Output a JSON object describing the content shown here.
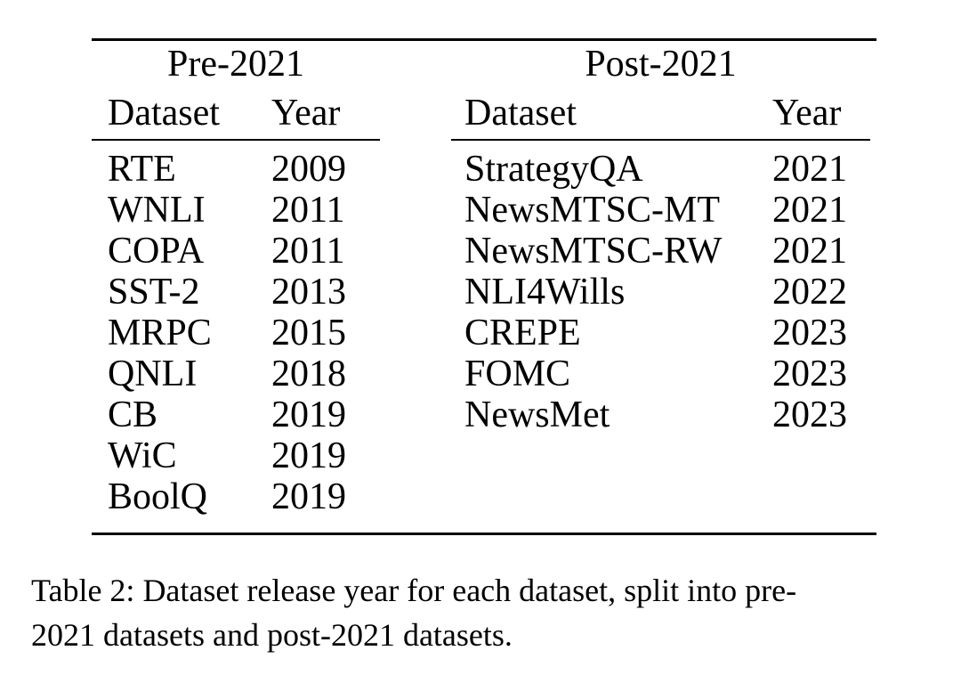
{
  "table": {
    "groups": [
      {
        "title": "Pre-2021",
        "col_headers": {
          "dataset": "Dataset",
          "year": "Year"
        },
        "rows": [
          {
            "dataset": "RTE",
            "year": "2009"
          },
          {
            "dataset": "WNLI",
            "year": "2011"
          },
          {
            "dataset": "COPA",
            "year": "2011"
          },
          {
            "dataset": "SST-2",
            "year": "2013"
          },
          {
            "dataset": "MRPC",
            "year": "2015"
          },
          {
            "dataset": "QNLI",
            "year": "2018"
          },
          {
            "dataset": "CB",
            "year": "2019"
          },
          {
            "dataset": "WiC",
            "year": "2019"
          },
          {
            "dataset": "BoolQ",
            "year": "2019"
          }
        ]
      },
      {
        "title": "Post-2021",
        "col_headers": {
          "dataset": "Dataset",
          "year": "Year"
        },
        "rows": [
          {
            "dataset": "StrategyQA",
            "year": "2021"
          },
          {
            "dataset": "NewsMTSC-MT",
            "year": "2021"
          },
          {
            "dataset": "NewsMTSC-RW",
            "year": "2021"
          },
          {
            "dataset": "NLI4Wills",
            "year": "2022"
          },
          {
            "dataset": "CREPE",
            "year": "2023"
          },
          {
            "dataset": "FOMC",
            "year": "2023"
          },
          {
            "dataset": "NewsMet",
            "year": "2023"
          }
        ]
      }
    ]
  },
  "caption": {
    "lines": [
      "Table 2: Dataset release year for each dataset, split into pre-",
      "2021 datasets and post-2021 datasets."
    ]
  },
  "colors": {
    "text": "#000000",
    "background": "#ffffff",
    "rule": "#000000"
  }
}
